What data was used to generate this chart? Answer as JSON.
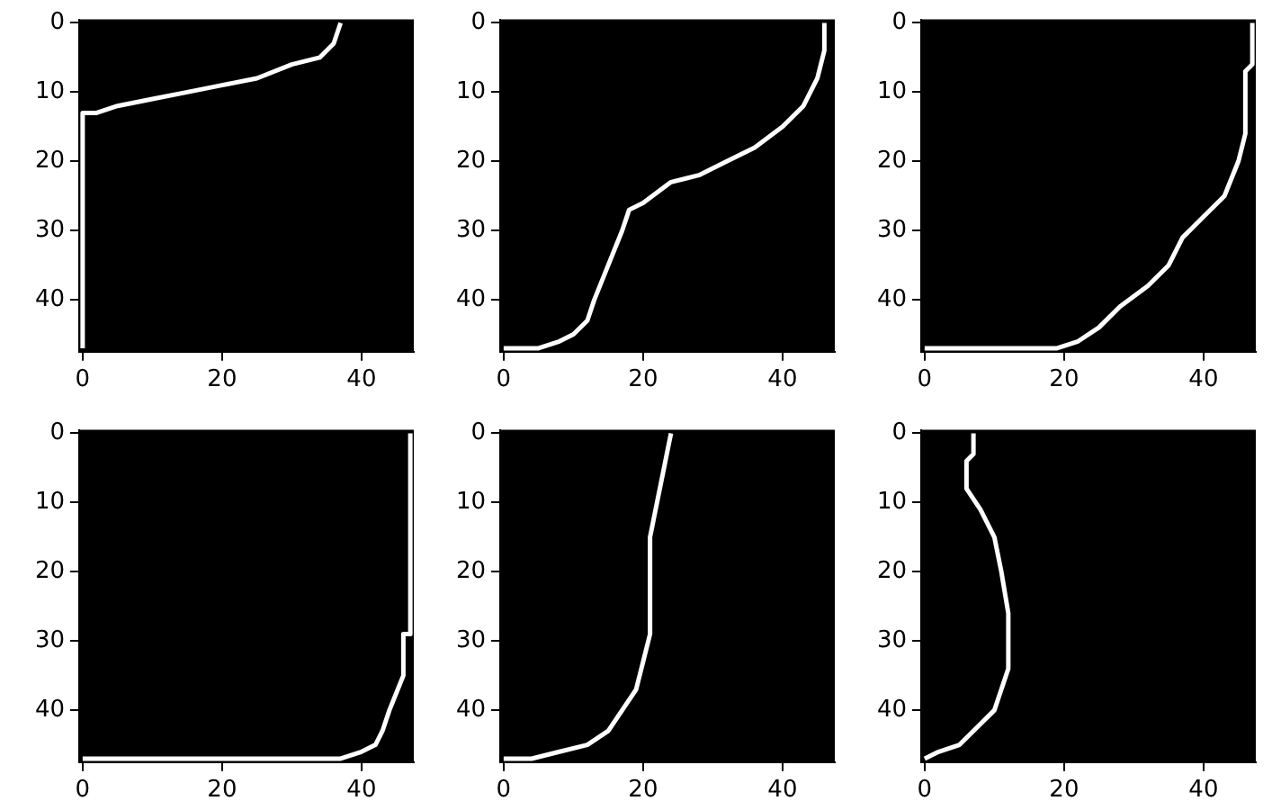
{
  "chart_data": [
    {
      "type": "line",
      "xlim": [
        -0.5,
        47.5
      ],
      "ylim": [
        47.5,
        -0.5
      ],
      "xticks": [
        0,
        20,
        40
      ],
      "yticks": [
        0,
        10,
        20,
        30,
        40
      ],
      "series": [
        {
          "color": "#ffffff",
          "x": [
            0,
            0,
            2,
            5,
            10,
            15,
            20,
            25,
            30,
            34,
            36,
            37
          ],
          "values": [
            47,
            13,
            13,
            12,
            11,
            10,
            9,
            8,
            6,
            5,
            3,
            0
          ]
        }
      ]
    },
    {
      "type": "line",
      "xlim": [
        -0.5,
        47.5
      ],
      "ylim": [
        47.5,
        -0.5
      ],
      "xticks": [
        0,
        20,
        40
      ],
      "yticks": [
        0,
        10,
        20,
        30,
        40
      ],
      "series": [
        {
          "color": "#ffffff",
          "x": [
            0,
            5,
            8,
            10,
            12,
            13,
            15,
            17,
            18,
            20,
            24,
            28,
            32,
            36,
            40,
            43,
            45,
            46,
            46
          ],
          "values": [
            47,
            47,
            46,
            45,
            43,
            40,
            35,
            30,
            27,
            26,
            23,
            22,
            20,
            18,
            15,
            12,
            8,
            4,
            0
          ]
        }
      ]
    },
    {
      "type": "line",
      "xlim": [
        -0.5,
        47.5
      ],
      "ylim": [
        47.5,
        -0.5
      ],
      "xticks": [
        0,
        20,
        40
      ],
      "yticks": [
        0,
        10,
        20,
        30,
        40
      ],
      "series": [
        {
          "color": "#ffffff",
          "x": [
            0,
            19,
            22,
            25,
            28,
            32,
            35,
            37,
            40,
            43,
            45,
            46,
            46,
            47,
            47
          ],
          "values": [
            47,
            47,
            46,
            44,
            41,
            38,
            35,
            31,
            28,
            25,
            20,
            16,
            7,
            6,
            0
          ]
        }
      ]
    },
    {
      "type": "line",
      "xlim": [
        -0.5,
        47.5
      ],
      "ylim": [
        47.5,
        -0.5
      ],
      "xticks": [
        0,
        20,
        40
      ],
      "yticks": [
        0,
        10,
        20,
        30,
        40
      ],
      "series": [
        {
          "color": "#ffffff",
          "x": [
            0,
            37,
            40,
            42,
            43,
            44,
            46,
            46,
            47,
            47
          ],
          "values": [
            47,
            47,
            46,
            45,
            43,
            40,
            35,
            29,
            29,
            0
          ]
        }
      ]
    },
    {
      "type": "line",
      "xlim": [
        -0.5,
        47.5
      ],
      "ylim": [
        47.5,
        -0.5
      ],
      "xticks": [
        0,
        20,
        40
      ],
      "yticks": [
        0,
        10,
        20,
        30,
        40
      ],
      "series": [
        {
          "color": "#ffffff",
          "x": [
            0,
            4,
            8,
            12,
            15,
            17,
            19,
            20,
            21,
            21,
            22,
            23,
            24
          ],
          "values": [
            47,
            47,
            46,
            45,
            43,
            40,
            37,
            33,
            29,
            15,
            10,
            5,
            0
          ]
        }
      ]
    },
    {
      "type": "line",
      "xlim": [
        -0.5,
        47.5
      ],
      "ylim": [
        47.5,
        -0.5
      ],
      "xticks": [
        0,
        20,
        40
      ],
      "yticks": [
        0,
        10,
        20,
        30,
        40
      ],
      "series": [
        {
          "color": "#ffffff",
          "x": [
            0,
            2,
            5,
            8,
            10,
            11,
            12,
            12,
            11,
            10,
            8,
            6,
            6,
            7,
            7
          ],
          "values": [
            47,
            46,
            45,
            42,
            40,
            37,
            34,
            26,
            20,
            15,
            11,
            8,
            4,
            3,
            0
          ]
        }
      ]
    }
  ]
}
